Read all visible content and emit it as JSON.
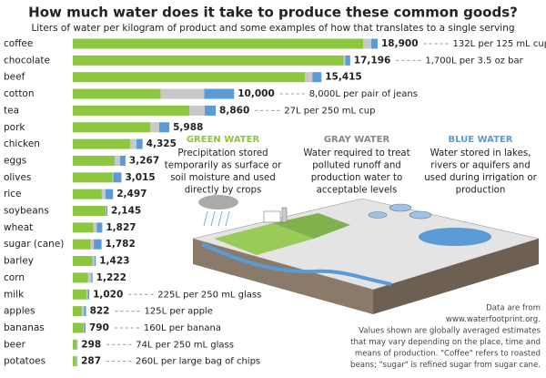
{
  "chart_data": {
    "type": "bar",
    "orientation": "horizontal",
    "stacked": true,
    "title": "How much water does it take to produce these common goods?",
    "subtitle": "Liters of water per kilogram of product and some examples of how that translates to a single serving",
    "categories": [
      "coffee",
      "chocolate",
      "beef",
      "cotton",
      "tea",
      "pork",
      "chicken",
      "eggs",
      "olives",
      "rice",
      "soybeans",
      "wheat",
      "sugar (cane)",
      "barley",
      "corn",
      "milk",
      "apples",
      "bananas",
      "beer",
      "potatoes"
    ],
    "series": [
      {
        "name": "GREEN WATER",
        "color": "#8dc63f",
        "values": [
          18000,
          16800,
          14400,
          5450,
          7220,
          4800,
          3550,
          2600,
          2470,
          1800,
          2040,
          1277,
          1100,
          1213,
          947,
          863,
          561,
          660,
          230,
          191
        ]
      },
      {
        "name": "GRAY WATER",
        "color": "#c8c8c8",
        "values": [
          500,
          100,
          450,
          2700,
          960,
          560,
          400,
          330,
          45,
          230,
          35,
          208,
          200,
          131,
          194,
          72,
          133,
          33,
          38,
          63
        ]
      },
      {
        "name": "BLUE WATER",
        "color": "#5b9bd5",
        "values": [
          400,
          296,
          565,
          1850,
          680,
          628,
          375,
          337,
          500,
          467,
          70,
          342,
          482,
          79,
          81,
          85,
          128,
          97,
          30,
          33
        ]
      }
    ],
    "totals": {
      "values": [
        18900,
        17196,
        15415,
        10000,
        8860,
        5988,
        4325,
        3267,
        3015,
        2497,
        2145,
        1827,
        1782,
        1423,
        1222,
        1020,
        822,
        790,
        298,
        287
      ],
      "value_labels": [
        "18,900",
        "17,196",
        "15,415",
        "10,000",
        "8,860",
        "5,988",
        "4,325",
        "3,267",
        "3,015",
        "2,497",
        "2,145",
        "1,827",
        "1,782",
        "1,423",
        "1,222",
        "1,020",
        "822",
        "790",
        "298",
        "287"
      ]
    },
    "serving_notes": [
      "132L per 125 mL cup",
      "1,700L per 3.5 oz bar",
      null,
      "8,000L per pair of jeans",
      "27L per 250 mL cup",
      null,
      null,
      null,
      null,
      null,
      null,
      null,
      null,
      null,
      null,
      "225L per 250 mL glass",
      "125L per apple",
      "160L per banana",
      "74L per 250 mL glass",
      "260L per large bag of chips"
    ],
    "legend_descriptions": [
      [
        "Precipitation stored",
        "temporarily as surface or",
        "soil moisture and used",
        "directly by crops"
      ],
      [
        "Water required to treat",
        "polluted runoff and",
        "production water to",
        "acceptable levels"
      ],
      [
        "Water stored in lakes,",
        "rivers or aquifers and",
        "used during irrigation or",
        "production"
      ]
    ],
    "footnote": [
      "Data are from",
      "www.waterfootprint.org.",
      "Values shown are globally averaged estimates",
      "that may vary depending on the place, time and",
      "means of production. \"Coffee\" refers to roasted",
      "beans; \"sugar\" is refined sugar from sugar cane."
    ]
  }
}
